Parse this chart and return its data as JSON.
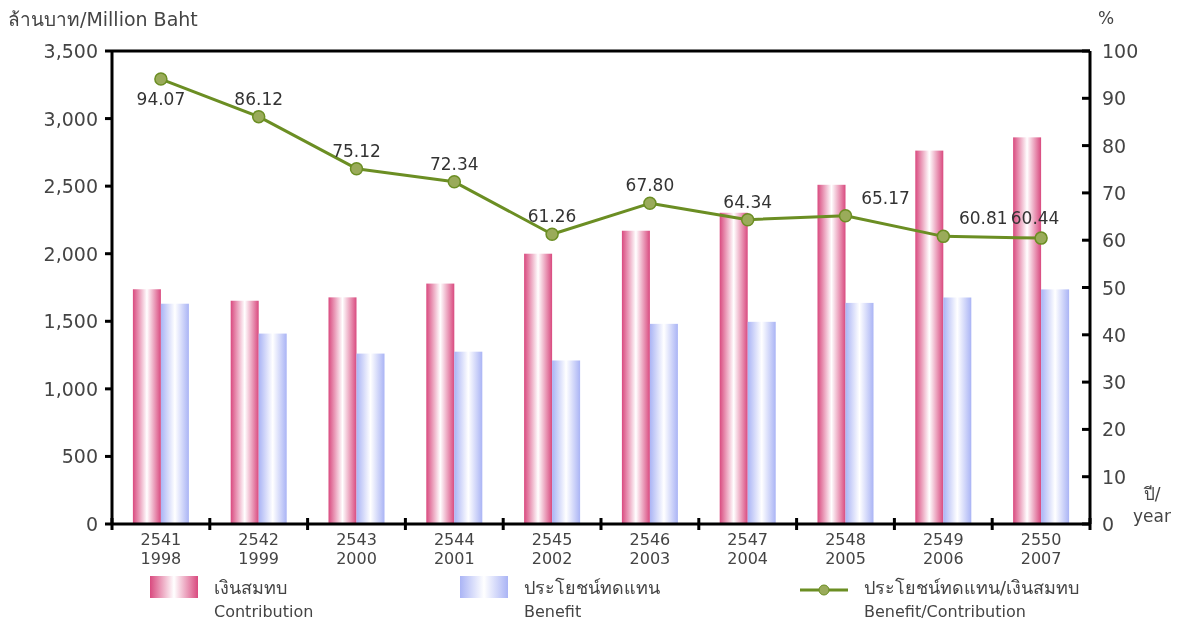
{
  "chart_data": {
    "type": "bar",
    "ylabel": "ล้านบาท/Million Baht",
    "y2label": "%",
    "xlabel": "ปี/\nyear",
    "categories": [
      "2541\n1998",
      "2542\n1999",
      "2543\n2000",
      "2544\n2001",
      "2545\n2002",
      "2546\n2003",
      "2547\n2004",
      "2548\n2005",
      "2549\n2006",
      "2550\n2007"
    ],
    "series": [
      {
        "name": "เงินสมทบ\nContribution",
        "color": "#d94a7f",
        "values": [
          1737,
          1652,
          1677,
          1779,
          2000,
          2170,
          2303,
          2510,
          2763,
          2861
        ]
      },
      {
        "name": "ประโยชน์ทดแทน\nBenefit",
        "color": "#aab4f5",
        "values": [
          1630,
          1409,
          1261,
          1275,
          1210,
          1481,
          1496,
          1636,
          1676,
          1736
        ]
      },
      {
        "name": "ประโยชน์ทดแทน/เงินสมทบ\nBenefit/Contribution",
        "type": "line",
        "axis": "y2",
        "color": "#6b8e23",
        "marker": "circle",
        "values": [
          94.07,
          86.12,
          75.12,
          72.34,
          61.26,
          67.8,
          64.34,
          65.17,
          60.81,
          60.44
        ],
        "value_labels": [
          "94.07",
          "86.12",
          "75.12",
          "72.34",
          "61.26",
          "67.80",
          "64.34",
          "65.17",
          "60.81",
          "60.44"
        ]
      }
    ],
    "ylim": [
      0,
      3500
    ],
    "yticks": [
      {
        "value": 0,
        "label": "0"
      },
      {
        "value": 500,
        "label": "500"
      },
      {
        "value": 1000,
        "label": "1,000"
      },
      {
        "value": 1500,
        "label": "1,500"
      },
      {
        "value": 2000,
        "label": "2,000"
      },
      {
        "value": 2500,
        "label": "2,500"
      },
      {
        "value": 3000,
        "label": "3,000"
      },
      {
        "value": 3500,
        "label": "3,500"
      }
    ],
    "y2lim": [
      0,
      100
    ],
    "y2ticks": [
      0,
      10,
      20,
      30,
      40,
      50,
      60,
      70,
      80,
      90,
      100
    ],
    "grid": false,
    "legend": "bottom"
  }
}
